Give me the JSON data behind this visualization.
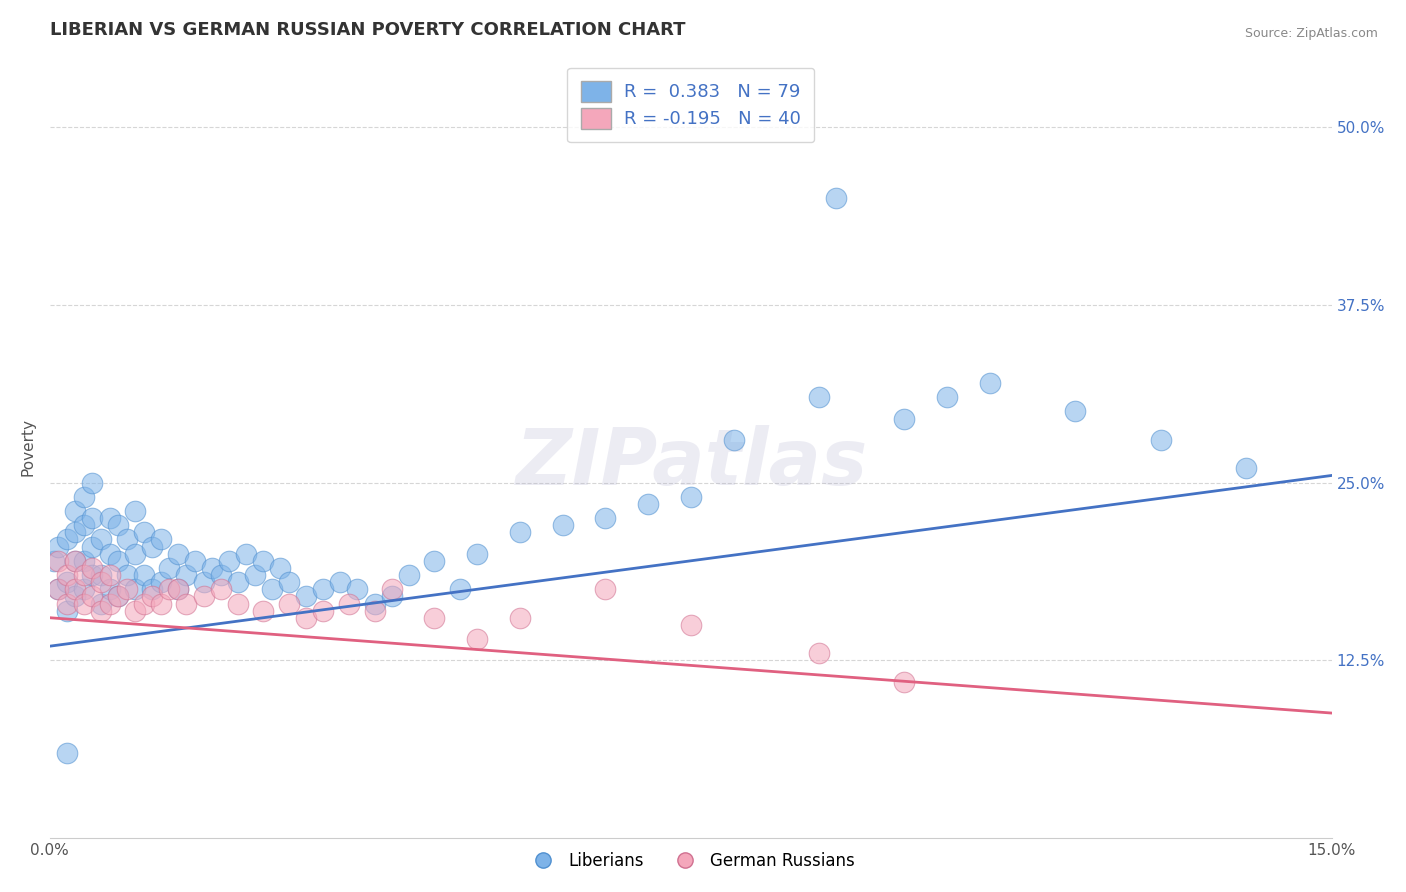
{
  "title": "LIBERIAN VS GERMAN RUSSIAN POVERTY CORRELATION CHART",
  "source": "Source: ZipAtlas.com",
  "ylabel": "Poverty",
  "xlim": [
    0.0,
    0.15
  ],
  "ylim": [
    0.0,
    0.55
  ],
  "xtick_labels": [
    "0.0%",
    "15.0%"
  ],
  "ytick_labels": [
    "12.5%",
    "25.0%",
    "37.5%",
    "50.0%"
  ],
  "ytick_values": [
    0.125,
    0.25,
    0.375,
    0.5
  ],
  "xtick_values": [
    0.0,
    0.15
  ],
  "blue_R": "0.383",
  "blue_N": "79",
  "pink_R": "-0.195",
  "pink_N": "40",
  "blue_color": "#7EB3E8",
  "pink_color": "#F4A7BB",
  "blue_line_color": "#4472C4",
  "pink_line_color": "#E06080",
  "background_color": "#FFFFFF",
  "grid_color": "#CCCCCC",
  "watermark": "ZIPatlas",
  "legend_label_blue": "Liberians",
  "legend_label_pink": "German Russians",
  "blue_scatter_x": [
    0.0005,
    0.001,
    0.001,
    0.002,
    0.002,
    0.002,
    0.003,
    0.003,
    0.003,
    0.003,
    0.004,
    0.004,
    0.004,
    0.004,
    0.005,
    0.005,
    0.005,
    0.005,
    0.006,
    0.006,
    0.006,
    0.007,
    0.007,
    0.007,
    0.008,
    0.008,
    0.008,
    0.009,
    0.009,
    0.01,
    0.01,
    0.01,
    0.011,
    0.011,
    0.012,
    0.012,
    0.013,
    0.013,
    0.014,
    0.015,
    0.015,
    0.016,
    0.017,
    0.018,
    0.019,
    0.02,
    0.021,
    0.022,
    0.023,
    0.024,
    0.025,
    0.026,
    0.027,
    0.028,
    0.03,
    0.032,
    0.034,
    0.036,
    0.038,
    0.04,
    0.042,
    0.045,
    0.048,
    0.05,
    0.055,
    0.06,
    0.065,
    0.07,
    0.075,
    0.08,
    0.09,
    0.092,
    0.1,
    0.105,
    0.11,
    0.12,
    0.13,
    0.14,
    0.002
  ],
  "blue_scatter_y": [
    0.195,
    0.175,
    0.205,
    0.16,
    0.18,
    0.21,
    0.17,
    0.195,
    0.215,
    0.23,
    0.175,
    0.195,
    0.22,
    0.24,
    0.185,
    0.205,
    0.225,
    0.25,
    0.165,
    0.185,
    0.21,
    0.175,
    0.2,
    0.225,
    0.17,
    0.195,
    0.22,
    0.185,
    0.21,
    0.175,
    0.2,
    0.23,
    0.185,
    0.215,
    0.175,
    0.205,
    0.18,
    0.21,
    0.19,
    0.175,
    0.2,
    0.185,
    0.195,
    0.18,
    0.19,
    0.185,
    0.195,
    0.18,
    0.2,
    0.185,
    0.195,
    0.175,
    0.19,
    0.18,
    0.17,
    0.175,
    0.18,
    0.175,
    0.165,
    0.17,
    0.185,
    0.195,
    0.175,
    0.2,
    0.215,
    0.22,
    0.225,
    0.235,
    0.24,
    0.28,
    0.31,
    0.45,
    0.295,
    0.31,
    0.32,
    0.3,
    0.28,
    0.26,
    0.06
  ],
  "pink_scatter_x": [
    0.001,
    0.001,
    0.002,
    0.002,
    0.003,
    0.003,
    0.004,
    0.004,
    0.005,
    0.005,
    0.006,
    0.006,
    0.007,
    0.007,
    0.008,
    0.009,
    0.01,
    0.011,
    0.012,
    0.013,
    0.014,
    0.015,
    0.016,
    0.018,
    0.02,
    0.022,
    0.025,
    0.028,
    0.03,
    0.032,
    0.035,
    0.038,
    0.04,
    0.045,
    0.05,
    0.055,
    0.065,
    0.075,
    0.09,
    0.1
  ],
  "pink_scatter_y": [
    0.175,
    0.195,
    0.165,
    0.185,
    0.175,
    0.195,
    0.165,
    0.185,
    0.17,
    0.19,
    0.16,
    0.18,
    0.165,
    0.185,
    0.17,
    0.175,
    0.16,
    0.165,
    0.17,
    0.165,
    0.175,
    0.175,
    0.165,
    0.17,
    0.175,
    0.165,
    0.16,
    0.165,
    0.155,
    0.16,
    0.165,
    0.16,
    0.175,
    0.155,
    0.14,
    0.155,
    0.175,
    0.15,
    0.13,
    0.11
  ],
  "title_fontsize": 13,
  "axis_label_fontsize": 11,
  "tick_fontsize": 11,
  "legend_fontsize": 12
}
